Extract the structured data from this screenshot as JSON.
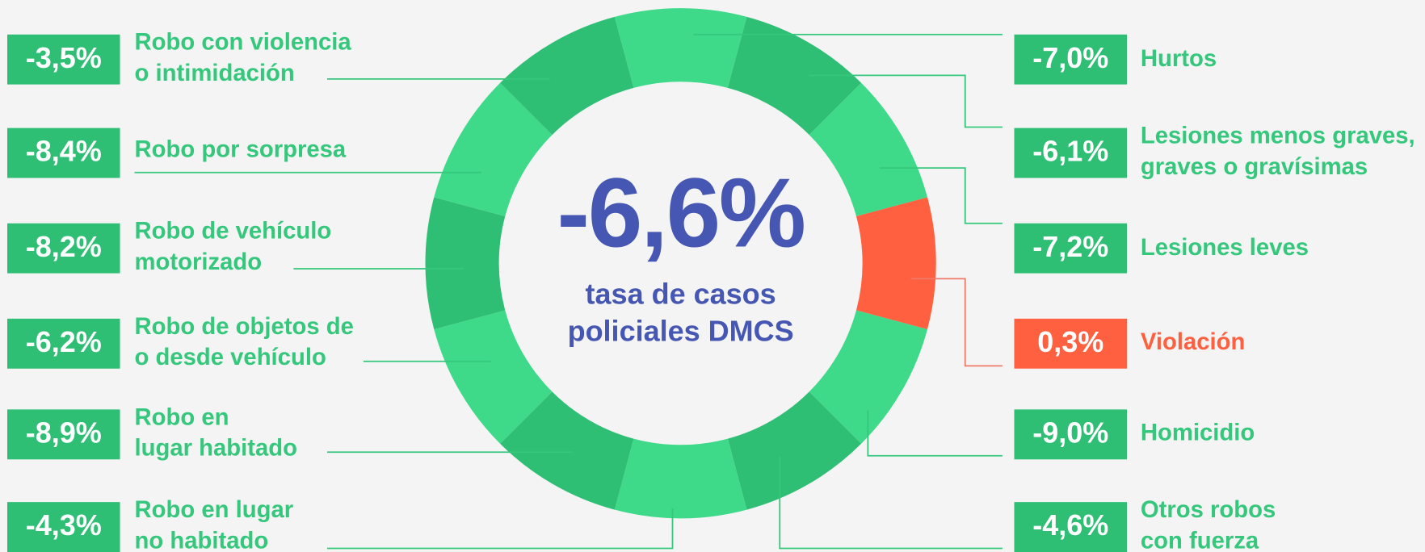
{
  "center": {
    "value": "-6,6%",
    "caption": [
      "tasa de casos",
      "policiales DMCS"
    ]
  },
  "left": [
    {
      "value": "-3,5%",
      "lines": [
        "Robo con violencia",
        "o intimidación"
      ]
    },
    {
      "value": "-8,4%",
      "lines": [
        "Robo por sorpresa"
      ]
    },
    {
      "value": "-8,2%",
      "lines": [
        "Robo de vehículo",
        "motorizado"
      ]
    },
    {
      "value": "-6,2%",
      "lines": [
        "Robo de objetos de",
        "o desde vehículo"
      ]
    },
    {
      "value": "-8,9%",
      "lines": [
        "Robo en",
        "lugar habitado"
      ]
    },
    {
      "value": "-4,3%",
      "lines": [
        "Robo en lugar",
        "no habitado"
      ]
    }
  ],
  "right": [
    {
      "value": "-7,0%",
      "lines": [
        "Hurtos"
      ]
    },
    {
      "value": "-6,1%",
      "lines": [
        "Lesiones menos graves,",
        "graves o gravísimas"
      ]
    },
    {
      "value": "-7,2%",
      "lines": [
        "Lesiones leves"
      ]
    },
    {
      "value": "0,3%",
      "lines": [
        "Violación"
      ],
      "color": "#ff6040"
    },
    {
      "value": "-9,0%",
      "lines": [
        "Homicidio"
      ]
    },
    {
      "value": "-4,6%",
      "lines": [
        "Otros robos",
        "con fuerza"
      ]
    }
  ]
}
